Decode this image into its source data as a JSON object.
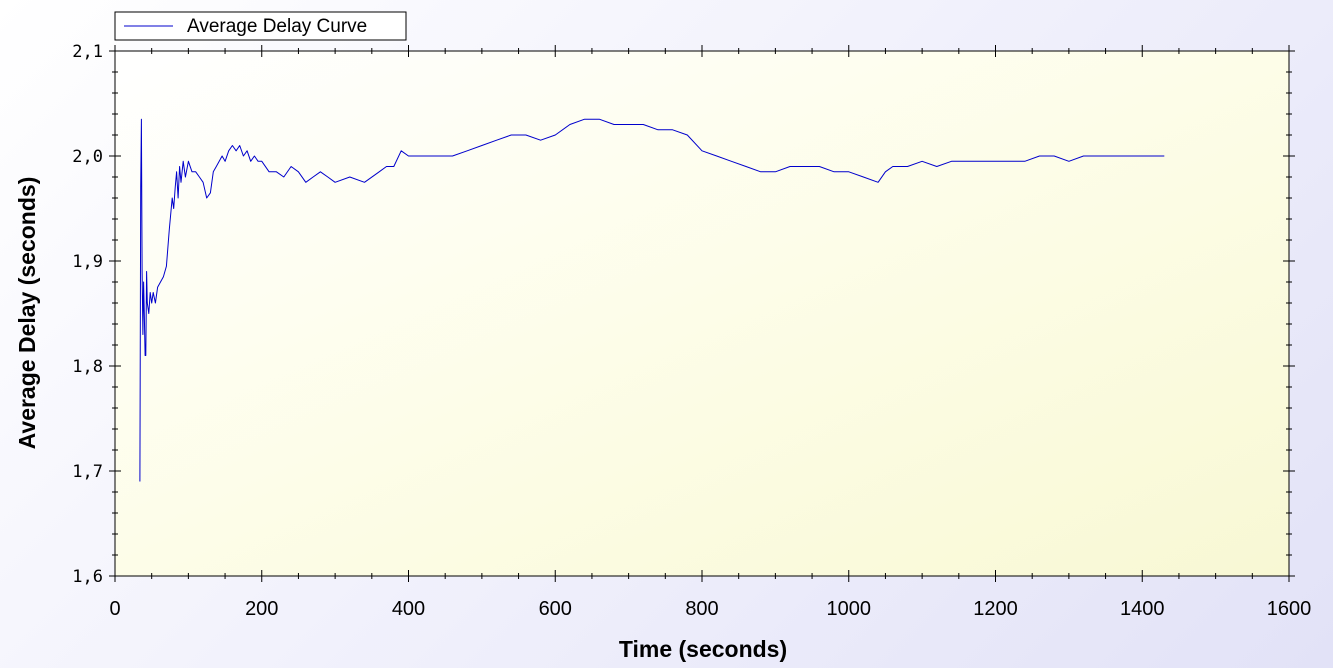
{
  "chart_data": {
    "type": "line",
    "title": "",
    "xlabel": "Time (seconds)",
    "ylabel": "Average Delay (seconds)",
    "xlim": [
      0,
      1600
    ],
    "ylim": [
      1.6,
      2.1
    ],
    "xticks": [
      "0",
      "200",
      "400",
      "600",
      "800",
      "1000",
      "1200",
      "1400",
      "1600"
    ],
    "yticks": [
      "1,6",
      "1,7",
      "1,8",
      "1,9",
      "2,0",
      "2,1"
    ],
    "legend_position": "top-left",
    "grid": false,
    "series": [
      {
        "name": "Average Delay Curve",
        "color": "#0000cc",
        "x": [
          34,
          35,
          36,
          37,
          38,
          39,
          40,
          41,
          42,
          43,
          44,
          46,
          48,
          50,
          52,
          55,
          58,
          62,
          66,
          70,
          74,
          78,
          80,
          82,
          84,
          86,
          88,
          90,
          93,
          96,
          100,
          105,
          110,
          115,
          120,
          125,
          130,
          134,
          138,
          142,
          146,
          150,
          155,
          160,
          165,
          170,
          175,
          180,
          185,
          190,
          195,
          200,
          210,
          220,
          230,
          240,
          250,
          260,
          270,
          280,
          290,
          300,
          320,
          340,
          360,
          370,
          380,
          390,
          400,
          420,
          440,
          460,
          480,
          500,
          520,
          540,
          560,
          580,
          600,
          620,
          640,
          660,
          680,
          700,
          720,
          740,
          760,
          780,
          800,
          820,
          840,
          860,
          880,
          900,
          920,
          940,
          960,
          980,
          1000,
          1020,
          1040,
          1050,
          1060,
          1080,
          1100,
          1120,
          1140,
          1160,
          1180,
          1200,
          1220,
          1240,
          1260,
          1280,
          1300,
          1320,
          1340,
          1360,
          1380,
          1400,
          1420,
          1430
        ],
        "y": [
          1.69,
          1.97,
          2.035,
          1.89,
          1.83,
          1.88,
          1.85,
          1.81,
          1.81,
          1.89,
          1.86,
          1.85,
          1.87,
          1.86,
          1.87,
          1.86,
          1.875,
          1.88,
          1.885,
          1.895,
          1.93,
          1.96,
          1.95,
          1.97,
          1.985,
          1.96,
          1.99,
          1.975,
          1.995,
          1.98,
          1.995,
          1.985,
          1.985,
          1.98,
          1.975,
          1.96,
          1.965,
          1.985,
          1.99,
          1.995,
          2.0,
          1.995,
          2.005,
          2.01,
          2.005,
          2.01,
          2.0,
          2.005,
          1.995,
          2.0,
          1.995,
          1.995,
          1.985,
          1.985,
          1.98,
          1.99,
          1.985,
          1.975,
          1.98,
          1.985,
          1.98,
          1.975,
          1.98,
          1.975,
          1.985,
          1.99,
          1.99,
          2.005,
          2.0,
          2.0,
          2.0,
          2.0,
          2.005,
          2.01,
          2.015,
          2.02,
          2.02,
          2.015,
          2.02,
          2.03,
          2.035,
          2.035,
          2.03,
          2.03,
          2.03,
          2.025,
          2.025,
          2.02,
          2.005,
          2.0,
          1.995,
          1.99,
          1.985,
          1.985,
          1.99,
          1.99,
          1.99,
          1.985,
          1.985,
          1.98,
          1.975,
          1.985,
          1.99,
          1.99,
          1.995,
          1.99,
          1.995,
          1.995,
          1.995,
          1.995,
          1.995,
          1.995,
          2.0,
          2.0,
          1.995,
          2.0,
          2.0,
          2.0,
          2.0,
          2.0,
          2.0,
          2.0
        ]
      }
    ]
  }
}
